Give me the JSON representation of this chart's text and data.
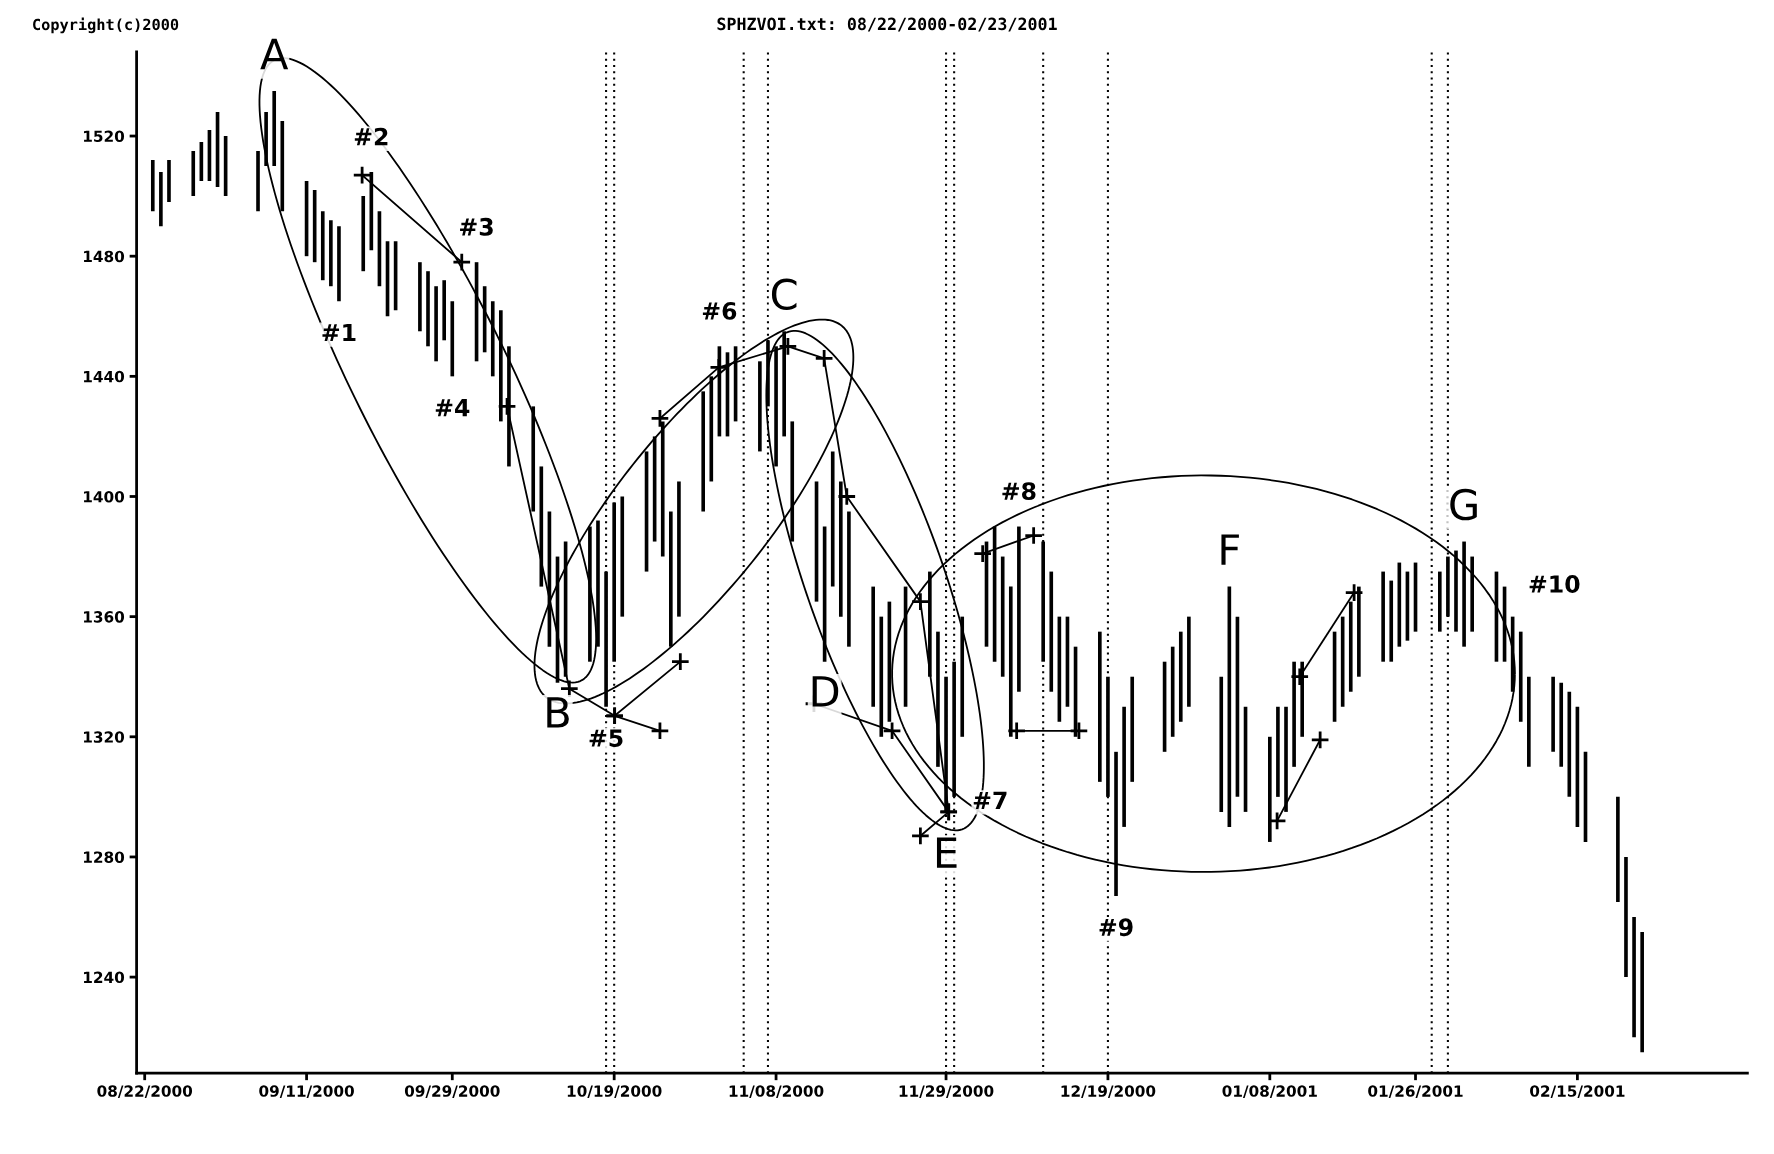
{
  "chart_data": {
    "type": "bar",
    "title": "SPHZVOI.txt: 08/22/2000-02/23/2001",
    "x": [
      "2000-08-23",
      "2000-08-24",
      "2000-08-25",
      "2000-08-28",
      "2000-08-29",
      "2000-08-30",
      "2000-08-31",
      "2000-09-01",
      "2000-09-05",
      "2000-09-06",
      "2000-09-07",
      "2000-09-08",
      "2000-09-11",
      "2000-09-12",
      "2000-09-13",
      "2000-09-14",
      "2000-09-15",
      "2000-09-18",
      "2000-09-19",
      "2000-09-20",
      "2000-09-21",
      "2000-09-22",
      "2000-09-25",
      "2000-09-26",
      "2000-09-27",
      "2000-09-28",
      "2000-09-29",
      "2000-10-02",
      "2000-10-03",
      "2000-10-04",
      "2000-10-05",
      "2000-10-06",
      "2000-10-09",
      "2000-10-10",
      "2000-10-11",
      "2000-10-12",
      "2000-10-13",
      "2000-10-16",
      "2000-10-17",
      "2000-10-18",
      "2000-10-19",
      "2000-10-20",
      "2000-10-23",
      "2000-10-24",
      "2000-10-25",
      "2000-10-26",
      "2000-10-27",
      "2000-10-30",
      "2000-10-31",
      "2000-11-01",
      "2000-11-02",
      "2000-11-03",
      "2000-11-06",
      "2000-11-07",
      "2000-11-08",
      "2000-11-09",
      "2000-11-10",
      "2000-11-13",
      "2000-11-14",
      "2000-11-15",
      "2000-11-16",
      "2000-11-17",
      "2000-11-20",
      "2000-11-21",
      "2000-11-22",
      "2000-11-24",
      "2000-11-27",
      "2000-11-28",
      "2000-11-29",
      "2000-11-30",
      "2000-12-01",
      "2000-12-04",
      "2000-12-05",
      "2000-12-06",
      "2000-12-07",
      "2000-12-08",
      "2000-12-11",
      "2000-12-12",
      "2000-12-13",
      "2000-12-14",
      "2000-12-15",
      "2000-12-18",
      "2000-12-19",
      "2000-12-20",
      "2000-12-21",
      "2000-12-22",
      "2000-12-26",
      "2000-12-27",
      "2000-12-28",
      "2000-12-29",
      "2001-01-02",
      "2001-01-03",
      "2001-01-04",
      "2001-01-05",
      "2001-01-08",
      "2001-01-09",
      "2001-01-10",
      "2001-01-11",
      "2001-01-12",
      "2001-01-16",
      "2001-01-17",
      "2001-01-18",
      "2001-01-19",
      "2001-01-22",
      "2001-01-23",
      "2001-01-24",
      "2001-01-25",
      "2001-01-26",
      "2001-01-29",
      "2001-01-30",
      "2001-01-31",
      "2001-02-01",
      "2001-02-02",
      "2001-02-05",
      "2001-02-06",
      "2001-02-07",
      "2001-02-08",
      "2001-02-09",
      "2001-02-12",
      "2001-02-13",
      "2001-02-14",
      "2001-02-15",
      "2001-02-16",
      "2001-02-20",
      "2001-02-21",
      "2001-02-22",
      "2001-02-23"
    ],
    "base": [
      1495,
      1490,
      1498,
      1500,
      1505,
      1505,
      1503,
      1500,
      1495,
      1510,
      1510,
      1495,
      1480,
      1478,
      1472,
      1470,
      1465,
      1475,
      1482,
      1470,
      1460,
      1462,
      1455,
      1450,
      1445,
      1452,
      1440,
      1445,
      1448,
      1440,
      1425,
      1410,
      1395,
      1370,
      1350,
      1338,
      1340,
      1345,
      1350,
      1330,
      1345,
      1360,
      1375,
      1385,
      1380,
      1350,
      1360,
      1395,
      1405,
      1420,
      1420,
      1425,
      1415,
      1430,
      1410,
      1420,
      1385,
      1365,
      1345,
      1370,
      1360,
      1350,
      1330,
      1320,
      1325,
      1330,
      1340,
      1310,
      1295,
      1300,
      1320,
      1350,
      1345,
      1340,
      1320,
      1335,
      1345,
      1335,
      1325,
      1330,
      1320,
      1305,
      1300,
      1267,
      1290,
      1305,
      1315,
      1320,
      1325,
      1330,
      1295,
      1290,
      1300,
      1295,
      1285,
      1300,
      1295,
      1310,
      1320,
      1325,
      1330,
      1335,
      1340,
      1345,
      1345,
      1350,
      1352,
      1355,
      1355,
      1360,
      1355,
      1350,
      1355,
      1345,
      1345,
      1335,
      1325,
      1310,
      1315,
      1310,
      1300,
      1290,
      1285,
      1265,
      1240,
      1220,
      1215
    ],
    "values": [
      17,
      18,
      14,
      15,
      13,
      17,
      25,
      20,
      20,
      18,
      25,
      30,
      25,
      24,
      23,
      22,
      25,
      25,
      26,
      25,
      25,
      23,
      23,
      25,
      25,
      20,
      25,
      33,
      22,
      25,
      37,
      40,
      35,
      40,
      45,
      42,
      45,
      45,
      42,
      45,
      53,
      40,
      40,
      35,
      45,
      45,
      45,
      40,
      35,
      30,
      28,
      25,
      30,
      22,
      40,
      35,
      40,
      40,
      45,
      45,
      45,
      45,
      40,
      40,
      40,
      40,
      35,
      45,
      45,
      45,
      40,
      35,
      45,
      40,
      50,
      55,
      40,
      40,
      35,
      30,
      30,
      50,
      40,
      48,
      40,
      35,
      30,
      30,
      30,
      30,
      45,
      80,
      60,
      35,
      35,
      30,
      35,
      35,
      25,
      30,
      30,
      30,
      30,
      30,
      27,
      28,
      23,
      23,
      20,
      20,
      27,
      35,
      25,
      30,
      25,
      25,
      30,
      30,
      25,
      28,
      35,
      40,
      30,
      35,
      40,
      40,
      40
    ],
    "color": "#000000",
    "xlim": [
      "2000-08-21",
      "2001-03-08"
    ],
    "xticks": [
      {
        "value": "2000-08-22",
        "label": "08/22/2000"
      },
      {
        "value": "2000-09-11",
        "label": "09/11/2000"
      },
      {
        "value": "2000-09-29",
        "label": "09/29/2000"
      },
      {
        "value": "2000-10-19",
        "label": "10/19/2000"
      },
      {
        "value": "2000-11-08",
        "label": "11/08/2000"
      },
      {
        "value": "2000-11-29",
        "label": "11/29/2000"
      },
      {
        "value": "2000-12-19",
        "label": "12/19/2000"
      },
      {
        "value": "2001-01-08",
        "label": "01/08/2001"
      },
      {
        "value": "2001-01-26",
        "label": "01/26/2001"
      },
      {
        "value": "2001-02-15",
        "label": "02/15/2001"
      }
    ],
    "ylim": [
      1208,
      1548
    ],
    "yticks": [
      1240,
      1280,
      1320,
      1360,
      1400,
      1440,
      1480,
      1520
    ],
    "grid": false,
    "ref_lines": [
      {
        "axis": "x",
        "value": "2000-10-18",
        "color": "#000000",
        "line_style": "dotted"
      },
      {
        "axis": "x",
        "value": "2000-10-19",
        "color": "#000000",
        "line_style": "dotted"
      },
      {
        "axis": "x",
        "value": "2000-11-04",
        "color": "#000000",
        "line_style": "dotted"
      },
      {
        "axis": "x",
        "value": "2000-11-07",
        "color": "#000000",
        "line_style": "dotted"
      },
      {
        "axis": "x",
        "value": "2000-11-29",
        "color": "#000000",
        "line_style": "dotted"
      },
      {
        "axis": "x",
        "value": "2000-11-30",
        "color": "#000000",
        "line_style": "dotted"
      },
      {
        "axis": "x",
        "value": "2000-12-11",
        "color": "#000000",
        "line_style": "dotted"
      },
      {
        "axis": "x",
        "value": "2000-12-19",
        "color": "#000000",
        "line_style": "dotted"
      },
      {
        "axis": "x",
        "value": "2001-01-28",
        "color": "#000000",
        "line_style": "dotted"
      },
      {
        "axis": "x",
        "value": "2001-01-30",
        "color": "#000000",
        "line_style": "dotted"
      }
    ],
    "annotations": [
      "Copyright(c)2000",
      {
        "text": "A",
        "x": "2000-09-07",
        "y": 1535
      },
      {
        "text": "B",
        "x": "2000-10-12",
        "y": 1338
      },
      {
        "text": "C",
        "x": "2000-11-09",
        "y": 1455
      },
      {
        "text": "D",
        "x": "2000-11-14",
        "y": 1345
      },
      {
        "text": "E",
        "x": "2000-11-29",
        "y": 1295
      },
      {
        "text": "F",
        "x": "2001-01-03",
        "y": 1370
      },
      {
        "text": "G",
        "x": "2001-02-01",
        "y": 1385
      },
      {
        "text": "#1",
        "x": "2000-09-15",
        "y": 1465
      },
      {
        "text": "#2",
        "x": "2000-09-19",
        "y": 1508
      },
      {
        "text": "#3",
        "x": "2000-10-02",
        "y": 1478
      },
      {
        "text": "#4",
        "x": "2000-09-29",
        "y": 1440
      },
      {
        "text": "#5",
        "x": "2000-10-18",
        "y": 1330
      },
      {
        "text": "#6",
        "x": "2000-11-01",
        "y": 1450
      },
      {
        "text": "#7",
        "x": "2000-11-30",
        "y": 1300
      },
      {
        "text": "#8",
        "x": "2000-12-08",
        "y": 1390
      },
      {
        "text": "#9",
        "x": "2000-12-20",
        "y": 1267
      },
      {
        "text": "#10",
        "x": "2001-02-07",
        "y": 1360
      }
    ]
  }
}
